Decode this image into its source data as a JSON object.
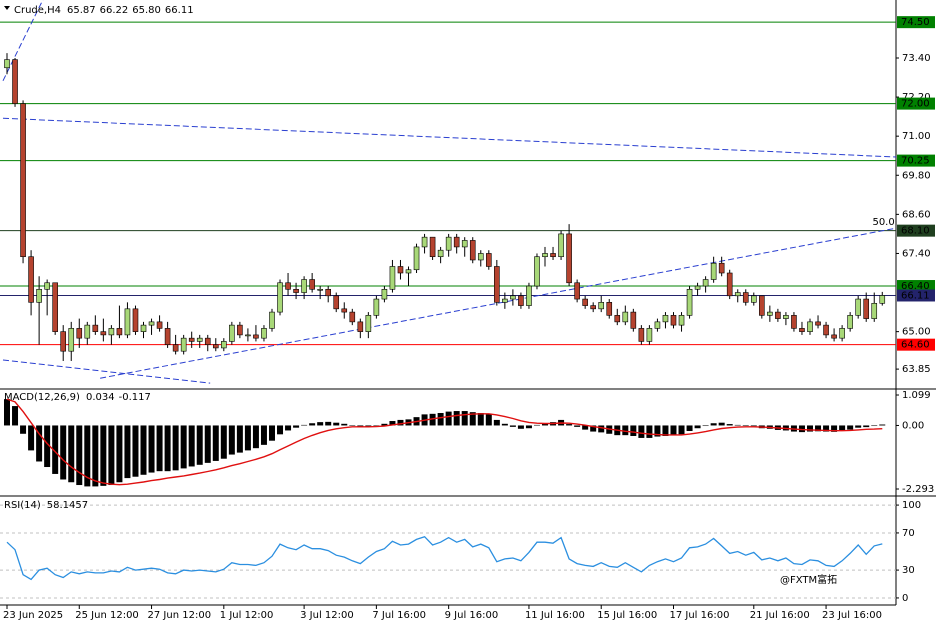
{
  "chart_data": [
    {
      "type": "candlestick",
      "title": "Crude,H4",
      "header_values": [
        65.87,
        66.22,
        {
          "value": 65.8,
          "label": "65.80"
        },
        66.11
      ],
      "bull_color": "#a8d878",
      "bear_color": "#b5432f",
      "wick_color": "#000000",
      "ylim": [
        63.27,
        75.18
      ],
      "yticks": [
        {
          "value": 73.4,
          "label": "73.40"
        },
        {
          "value": 72.2,
          "label": "72.20"
        },
        {
          "value": 71,
          "label": "71.00"
        },
        {
          "value": 69.8,
          "label": "69.80"
        },
        {
          "value": 68.6,
          "label": "68.60"
        },
        {
          "value": 67.4,
          "label": "67.40"
        },
        {
          "value": 65,
          "label": "65.00"
        },
        63.85
      ],
      "levels": [
        {
          "value": 74.5,
          "label": "74.50",
          "color": "#008000"
        },
        {
          "value": 72,
          "label": "72.00",
          "color": "#008000"
        },
        {
          "value": 70.25,
          "label": "70.25",
          "color": "#008000"
        },
        {
          "value": 68.1,
          "label": "68.10",
          "color": "#1f3f1f"
        },
        {
          "value": 66.4,
          "label": "66.40",
          "color": "#008000"
        },
        {
          "value": 66.11,
          "label": "66.11",
          "color": "#23236b"
        },
        {
          "value": 64.6,
          "label": "64.60",
          "color": "#ff0000"
        }
      ],
      "trendlines": [
        {
          "color": "#2a3fd0",
          "points": [
            [
              -0.5,
              72.7
            ],
            [
              4.5,
              75.2
            ]
          ]
        },
        {
          "color": "#2a3fd0",
          "points": [
            [
              -0.5,
              71.55
            ],
            [
              110.8,
              70.36
            ]
          ]
        },
        {
          "color": "#2a3fd0",
          "points": [
            [
              11.6,
              63.57
            ],
            [
              110.8,
              68.18
            ]
          ],
          "label": "50.0"
        },
        {
          "color": "#2a3fd0",
          "points": [
            [
              -0.5,
              64.13
            ],
            [
              25.3,
              63.42
            ]
          ]
        }
      ],
      "xticks": [
        {
          "value": 0,
          "label": "23 Jun 2025"
        },
        {
          "value": 9,
          "label": "25 Jun 12:00"
        },
        {
          "value": 18,
          "label": "27 Jun 12:00"
        },
        {
          "value": 27,
          "label": "1 Jul 12:00"
        },
        {
          "value": 37,
          "label": "3 Jul 12:00"
        },
        {
          "value": 46,
          "label": "7 Jul 16:00"
        },
        {
          "value": 55,
          "label": "9 Jul 16:00"
        },
        {
          "value": 65,
          "label": "11 Jul 16:00"
        },
        {
          "value": 74,
          "label": "15 Jul 16:00"
        },
        {
          "value": 83,
          "label": "17 Jul 16:00"
        },
        {
          "value": 93,
          "label": "21 Jul 16:00"
        },
        {
          "value": 102,
          "label": "23 Jul 16:00"
        }
      ],
      "watermark": "@FXTM富拓",
      "candles": [
        [
          73.1,
          73.55,
          72.9,
          73.35
        ],
        [
          73.35,
          73.4,
          71.9,
          72.0
        ],
        [
          72.0,
          72.1,
          67.1,
          67.3
        ],
        [
          67.3,
          67.5,
          65.5,
          65.9
        ],
        [
          65.9,
          66.7,
          64.6,
          66.3
        ],
        [
          66.3,
          66.6,
          65.5,
          66.5
        ],
        [
          66.5,
          66.5,
          64.9,
          65.0
        ],
        [
          65.0,
          65.2,
          64.1,
          64.4
        ],
        [
          64.4,
          65.3,
          64.1,
          65.1
        ],
        [
          65.1,
          65.4,
          64.5,
          64.8
        ],
        [
          64.8,
          65.3,
          64.6,
          65.2
        ],
        [
          65.2,
          65.5,
          64.9,
          65.0
        ],
        [
          65.0,
          65.4,
          64.7,
          64.9
        ],
        [
          64.9,
          65.2,
          64.6,
          65.1
        ],
        [
          65.1,
          65.8,
          64.8,
          64.9
        ],
        [
          64.9,
          65.9,
          64.8,
          65.7
        ],
        [
          65.7,
          65.8,
          64.9,
          65.0
        ],
        [
          65.0,
          65.3,
          64.8,
          65.2
        ],
        [
          65.2,
          65.4,
          64.9,
          65.3
        ],
        [
          65.3,
          65.5,
          65.0,
          65.1
        ],
        [
          65.1,
          65.3,
          64.5,
          64.6
        ],
        [
          64.6,
          64.9,
          64.3,
          64.4
        ],
        [
          64.4,
          64.9,
          64.3,
          64.8
        ],
        [
          64.8,
          65.0,
          64.5,
          64.7
        ],
        [
          64.7,
          64.9,
          64.5,
          64.8
        ],
        [
          64.8,
          64.9,
          64.4,
          64.6
        ],
        [
          64.6,
          64.8,
          64.4,
          64.5
        ],
        [
          64.5,
          64.8,
          64.4,
          64.7
        ],
        [
          64.7,
          65.3,
          64.6,
          65.2
        ],
        [
          65.2,
          65.3,
          64.8,
          64.9
        ],
        [
          64.9,
          65.1,
          64.7,
          64.9
        ],
        [
          64.9,
          65.2,
          64.7,
          64.8
        ],
        [
          64.8,
          65.2,
          64.7,
          65.1
        ],
        [
          65.1,
          65.7,
          65.0,
          65.6
        ],
        [
          65.6,
          66.6,
          65.5,
          66.5
        ],
        [
          66.5,
          66.8,
          66.1,
          66.3
        ],
        [
          66.3,
          66.5,
          66.0,
          66.2
        ],
        [
          66.2,
          66.7,
          66.0,
          66.6
        ],
        [
          66.6,
          66.8,
          66.2,
          66.3
        ],
        [
          66.3,
          66.4,
          66.0,
          66.3
        ],
        [
          66.3,
          66.4,
          65.9,
          66.1
        ],
        [
          66.1,
          66.2,
          65.6,
          65.7
        ],
        [
          65.7,
          65.9,
          65.4,
          65.6
        ],
        [
          65.6,
          65.7,
          65.2,
          65.3
        ],
        [
          65.3,
          65.4,
          64.8,
          65.0
        ],
        [
          65.0,
          65.6,
          64.8,
          65.5
        ],
        [
          65.5,
          66.1,
          65.4,
          66.0
        ],
        [
          66.0,
          66.4,
          65.9,
          66.3
        ],
        [
          66.3,
          67.2,
          66.2,
          67.0
        ],
        [
          67.0,
          67.2,
          66.6,
          66.8
        ],
        [
          66.8,
          67.0,
          66.4,
          66.9
        ],
        [
          66.9,
          67.7,
          66.8,
          67.6
        ],
        [
          67.6,
          68.0,
          67.4,
          67.9
        ],
        [
          67.9,
          67.9,
          67.2,
          67.3
        ],
        [
          67.3,
          67.6,
          67.1,
          67.5
        ],
        [
          67.5,
          68.0,
          67.3,
          67.9
        ],
        [
          67.9,
          68.0,
          67.4,
          67.6
        ],
        [
          67.6,
          67.9,
          67.3,
          67.8
        ],
        [
          67.8,
          67.9,
          67.1,
          67.2
        ],
        [
          67.2,
          67.5,
          67.0,
          67.4
        ],
        [
          67.4,
          67.5,
          66.9,
          67.0
        ],
        [
          67.0,
          67.2,
          65.8,
          65.9
        ],
        [
          65.9,
          66.2,
          65.7,
          66.0
        ],
        [
          66.0,
          66.3,
          65.8,
          66.1
        ],
        [
          66.1,
          66.2,
          65.7,
          65.8
        ],
        [
          65.8,
          66.5,
          65.7,
          66.4
        ],
        [
          66.4,
          67.4,
          66.3,
          67.3
        ],
        [
          67.3,
          67.6,
          67.0,
          67.4
        ],
        [
          67.4,
          67.6,
          67.2,
          67.3
        ],
        [
          67.3,
          68.1,
          67.2,
          68.0
        ],
        [
          68.0,
          68.3,
          66.4,
          66.5
        ],
        [
          66.5,
          66.6,
          65.9,
          66.0
        ],
        [
          66.0,
          66.1,
          65.7,
          65.8
        ],
        [
          65.8,
          65.9,
          65.6,
          65.7
        ],
        [
          65.7,
          66.1,
          65.6,
          65.9
        ],
        [
          65.9,
          66.0,
          65.4,
          65.5
        ],
        [
          65.5,
          65.7,
          65.2,
          65.3
        ],
        [
          65.3,
          65.8,
          65.2,
          65.6
        ],
        [
          65.6,
          65.7,
          65.0,
          65.1
        ],
        [
          65.1,
          65.2,
          64.6,
          64.7
        ],
        [
          64.7,
          65.2,
          64.6,
          65.1
        ],
        [
          65.1,
          65.4,
          65.0,
          65.3
        ],
        [
          65.3,
          65.6,
          65.1,
          65.5
        ],
        [
          65.5,
          65.6,
          65.1,
          65.2
        ],
        [
          65.2,
          65.6,
          65.0,
          65.5
        ],
        [
          65.5,
          66.4,
          65.4,
          66.3
        ],
        [
          66.3,
          66.5,
          66.1,
          66.4
        ],
        [
          66.4,
          66.7,
          66.2,
          66.6
        ],
        [
          66.6,
          67.3,
          66.5,
          67.1
        ],
        [
          67.1,
          67.3,
          66.7,
          66.8
        ],
        [
          66.8,
          66.9,
          66.0,
          66.1
        ],
        [
          66.1,
          66.3,
          65.9,
          66.2
        ],
        [
          66.2,
          66.3,
          65.8,
          65.9
        ],
        [
          65.9,
          66.2,
          65.8,
          66.1
        ],
        [
          66.1,
          66.1,
          65.4,
          65.5
        ],
        [
          65.5,
          65.8,
          65.3,
          65.6
        ],
        [
          65.6,
          65.7,
          65.3,
          65.4
        ],
        [
          65.4,
          65.6,
          65.2,
          65.5
        ],
        [
          65.5,
          65.6,
          65.0,
          65.1
        ],
        [
          65.1,
          65.3,
          64.9,
          65.0
        ],
        [
          65.0,
          65.4,
          64.9,
          65.3
        ],
        [
          65.3,
          65.5,
          65.1,
          65.2
        ],
        [
          65.2,
          65.3,
          64.8,
          64.9
        ],
        [
          64.9,
          65.1,
          64.7,
          64.8
        ],
        [
          64.8,
          65.2,
          64.7,
          65.1
        ],
        [
          65.1,
          65.6,
          65.0,
          65.5
        ],
        [
          65.5,
          66.1,
          65.4,
          66.0
        ],
        [
          66.0,
          66.2,
          65.3,
          65.4
        ],
        [
          65.4,
          66.2,
          65.3,
          65.87
        ],
        [
          65.87,
          66.22,
          65.8,
          66.11
        ]
      ]
    },
    {
      "type": "macd",
      "title": "MACD(12,26,9)",
      "header_values": [
        0.034,
        -0.117
      ],
      "bar_color": "#000000",
      "signal_color": "#e01010",
      "ylim": [
        -2.51,
        1.28
      ],
      "yticks": [
        1.099,
        {
          "value": 0,
          "label": "0.00"
        },
        -2.293
      ],
      "histogram": [
        0.95,
        0.7,
        -0.3,
        -0.9,
        -1.3,
        -1.5,
        -1.75,
        -1.95,
        -2.05,
        -2.15,
        -2.2,
        -2.2,
        -2.18,
        -2.15,
        -2.05,
        -1.9,
        -1.85,
        -1.78,
        -1.7,
        -1.65,
        -1.65,
        -1.62,
        -1.55,
        -1.48,
        -1.42,
        -1.35,
        -1.28,
        -1.2,
        -1.05,
        -0.98,
        -0.9,
        -0.82,
        -0.7,
        -0.55,
        -0.32,
        -0.18,
        -0.08,
        0.02,
        0.08,
        0.12,
        0.13,
        0.1,
        0.06,
        0.0,
        -0.06,
        -0.05,
        0.0,
        0.06,
        0.16,
        0.2,
        0.22,
        0.3,
        0.4,
        0.42,
        0.45,
        0.5,
        0.52,
        0.52,
        0.48,
        0.45,
        0.4,
        0.2,
        0.06,
        -0.05,
        -0.12,
        -0.1,
        0.02,
        0.08,
        0.12,
        0.2,
        0.05,
        -0.05,
        -0.15,
        -0.22,
        -0.25,
        -0.3,
        -0.35,
        -0.35,
        -0.38,
        -0.45,
        -0.45,
        -0.4,
        -0.38,
        -0.35,
        -0.32,
        -0.2,
        -0.1,
        -0.02,
        0.08,
        0.1,
        0.05,
        0.02,
        -0.02,
        -0.03,
        -0.1,
        -0.12,
        -0.16,
        -0.18,
        -0.22,
        -0.24,
        -0.22,
        -0.21,
        -0.22,
        -0.23,
        -0.2,
        -0.15,
        -0.08,
        -0.06,
        -0.02,
        0.034
      ],
      "signal": [
        0.95,
        0.85,
        0.5,
        0.1,
        -0.3,
        -0.65,
        -0.95,
        -1.25,
        -1.5,
        -1.7,
        -1.88,
        -2.0,
        -2.08,
        -2.12,
        -2.14,
        -2.12,
        -2.08,
        -2.04,
        -1.99,
        -1.95,
        -1.9,
        -1.86,
        -1.82,
        -1.77,
        -1.72,
        -1.66,
        -1.6,
        -1.53,
        -1.45,
        -1.38,
        -1.3,
        -1.22,
        -1.13,
        -1.02,
        -0.88,
        -0.74,
        -0.6,
        -0.47,
        -0.36,
        -0.26,
        -0.18,
        -0.12,
        -0.08,
        -0.05,
        -0.05,
        -0.05,
        -0.04,
        -0.02,
        0.02,
        0.06,
        0.1,
        0.14,
        0.19,
        0.24,
        0.28,
        0.32,
        0.36,
        0.39,
        0.41,
        0.42,
        0.42,
        0.38,
        0.32,
        0.25,
        0.17,
        0.11,
        0.08,
        0.07,
        0.07,
        0.09,
        0.08,
        0.05,
        0.01,
        -0.04,
        -0.08,
        -0.13,
        -0.17,
        -0.21,
        -0.24,
        -0.28,
        -0.31,
        -0.33,
        -0.34,
        -0.34,
        -0.34,
        -0.31,
        -0.27,
        -0.22,
        -0.16,
        -0.11,
        -0.08,
        -0.06,
        -0.05,
        -0.05,
        -0.06,
        -0.07,
        -0.09,
        -0.11,
        -0.13,
        -0.15,
        -0.16,
        -0.17,
        -0.18,
        -0.19,
        -0.19,
        -0.18,
        -0.16,
        -0.14,
        -0.13,
        -0.117
      ]
    },
    {
      "type": "line",
      "title": "RSI(14)",
      "header_values": [
        58.1457
      ],
      "color": "#2b8fe0",
      "grid": true,
      "ylim": [
        -7.6,
        108.7
      ],
      "yticks": [
        100,
        70,
        30,
        0
      ],
      "values": [
        60,
        52,
        25,
        20,
        30,
        32,
        25,
        22,
        28,
        26,
        28,
        27,
        27,
        29,
        28,
        33,
        30,
        31,
        32,
        31,
        27,
        26,
        30,
        29,
        30,
        29,
        28,
        31,
        38,
        36,
        36,
        35,
        38,
        45,
        58,
        54,
        52,
        57,
        53,
        53,
        51,
        46,
        44,
        40,
        37,
        44,
        50,
        53,
        61,
        57,
        58,
        63,
        66,
        57,
        60,
        65,
        60,
        63,
        55,
        58,
        54,
        39,
        42,
        43,
        40,
        49,
        60,
        60,
        59,
        65,
        42,
        37,
        35,
        34,
        38,
        34,
        33,
        38,
        33,
        28,
        35,
        39,
        42,
        39,
        43,
        54,
        55,
        58,
        64,
        56,
        48,
        50,
        46,
        49,
        41,
        43,
        40,
        43,
        37,
        36,
        41,
        40,
        35,
        34,
        40,
        48,
        57,
        47,
        56,
        58.1457
      ]
    }
  ]
}
